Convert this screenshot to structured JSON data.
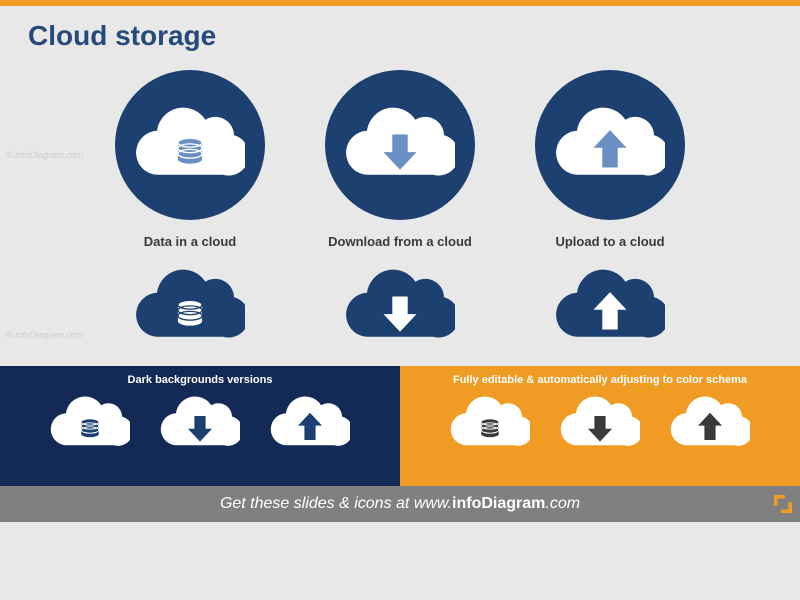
{
  "colors": {
    "orange": "#ef9b24",
    "navy": "#1c4070",
    "darknavy": "#132a56",
    "lightblue": "#6a8fc3",
    "darkgrey": "#3a3a3a",
    "footer_grey": "#808080",
    "title": "#264a7c",
    "bg": "#e8e8e8",
    "white": "#ffffff"
  },
  "title": "Cloud storage",
  "icons": [
    {
      "type": "data",
      "label": "Data in a cloud"
    },
    {
      "type": "download",
      "label": "Download from a cloud"
    },
    {
      "type": "upload",
      "label": "Upload to a cloud"
    }
  ],
  "circle_cloud_fill": "#ffffff",
  "circle_accent": {
    "data": "#6a8fc3",
    "download": "#6a8fc3",
    "upload": "#6a8fc3"
  },
  "plain_cloud_fill": "#1c4070",
  "plain_accent": "#ffffff",
  "col_left": {
    "bg": "#132a56",
    "title": "Dark backgrounds  versions",
    "cloud": "#ffffff",
    "accent": "#1c4070"
  },
  "col_right": {
    "bg": "#ef9b24",
    "title": "Fully editable & automatically  adjusting  to color schema",
    "cloud": "#ffffff",
    "accent": "#3a3a3a"
  },
  "footer_text_pre": "Get these slides & icons at www.",
  "footer_text_bold": "infoDiagram",
  "footer_text_post": ".com",
  "watermark": "© infoDiagram.com"
}
